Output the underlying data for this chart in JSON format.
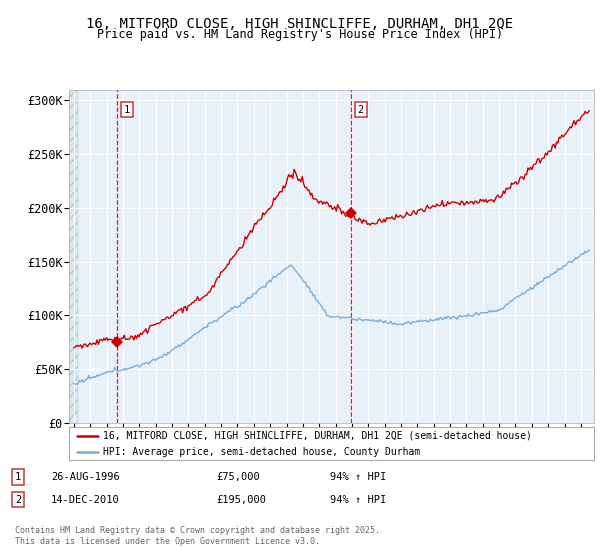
{
  "title_line1": "16, MITFORD CLOSE, HIGH SHINCLIFFE, DURHAM, DH1 2QE",
  "title_line2": "Price paid vs. HM Land Registry's House Price Index (HPI)",
  "xlim_start": 1993.7,
  "xlim_end": 2025.8,
  "ylim": [
    0,
    310000
  ],
  "yticks": [
    0,
    50000,
    100000,
    150000,
    200000,
    250000,
    300000
  ],
  "ytick_labels": [
    "£0",
    "£50K",
    "£100K",
    "£150K",
    "£200K",
    "£250K",
    "£300K"
  ],
  "marker1_x": 1996.65,
  "marker1_y": 75000,
  "marker2_x": 2010.95,
  "marker2_y": 195000,
  "vline1_x": 1996.65,
  "vline2_x": 2010.95,
  "hatch_end": 1994.25,
  "legend_line1": "16, MITFORD CLOSE, HIGH SHINCLIFFE, DURHAM, DH1 2QE (semi-detached house)",
  "legend_line2": "HPI: Average price, semi-detached house, County Durham",
  "footer": "Contains HM Land Registry data © Crown copyright and database right 2025.\nThis data is licensed under the Open Government Licence v3.0.",
  "red_color": "#cc0000",
  "blue_color": "#7aaed6",
  "plot_bg": "#e8f0f8",
  "grid_color": "#ffffff"
}
